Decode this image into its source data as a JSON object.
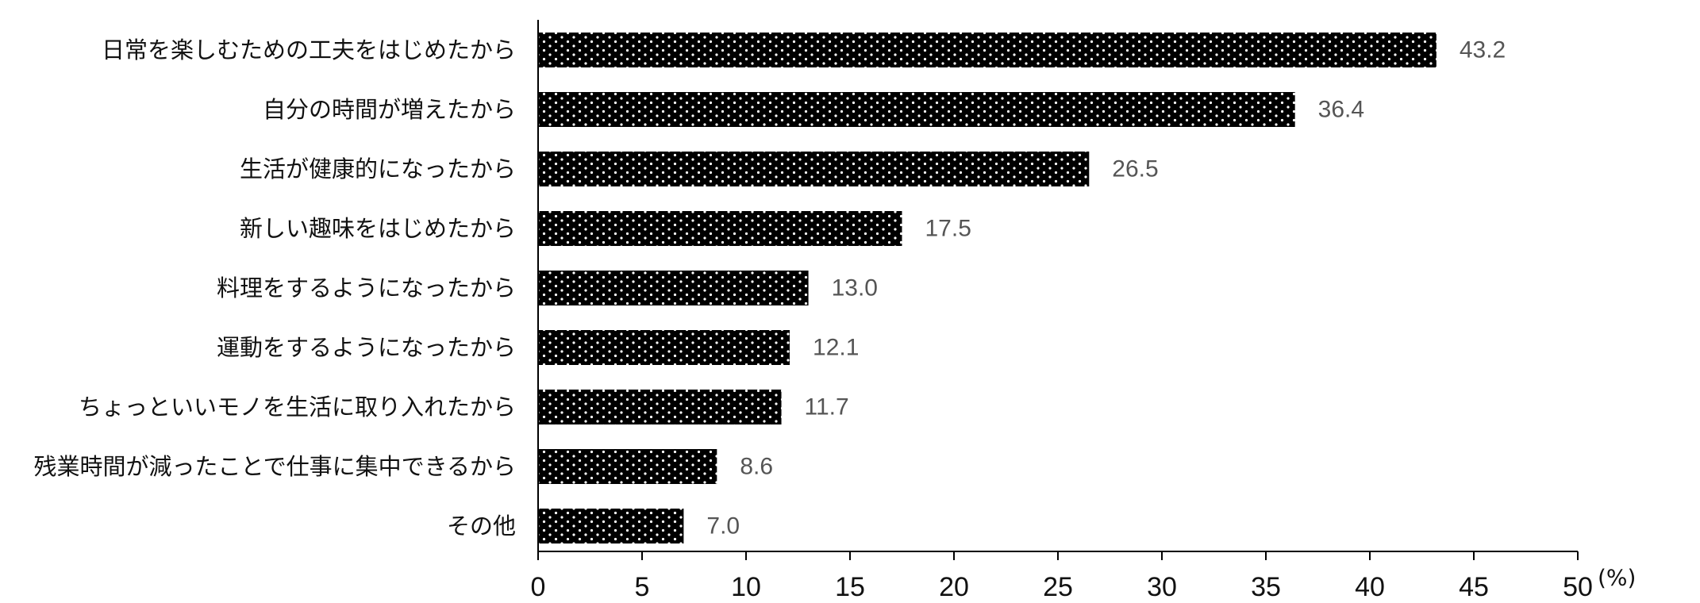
{
  "chart_data": {
    "type": "bar",
    "orientation": "horizontal",
    "categories": [
      "日常を楽しむための工夫をはじめたから",
      "自分の時間が増えたから",
      "生活が健康的になったから",
      "新しい趣味をはじめたから",
      "料理をするようになったから",
      "運動をするようになったから",
      "ちょっといいモノを生活に取り入れたから",
      "残業時間が減ったことで仕事に集中できるから",
      "その他"
    ],
    "values": [
      43.2,
      36.4,
      26.5,
      17.5,
      13.0,
      12.1,
      11.7,
      8.6,
      7.0
    ],
    "value_labels": [
      "43.2",
      "36.4",
      "26.5",
      "17.5",
      "13.0",
      "12.1",
      "11.7",
      "8.6",
      "7.0"
    ],
    "xlim": [
      0,
      50
    ],
    "x_ticks": [
      0,
      5,
      10,
      15,
      20,
      25,
      30,
      35,
      40,
      45,
      50
    ],
    "x_unit": "(%)",
    "bar_color": "#000000",
    "bar_pattern": "white-dots",
    "grid": false,
    "legend": "none"
  }
}
